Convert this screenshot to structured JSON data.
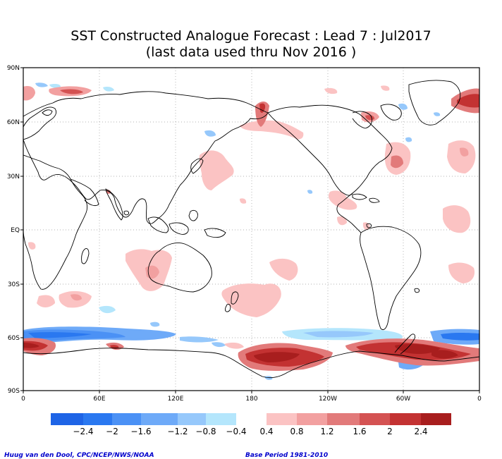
{
  "title": {
    "line1": "SST Constructed Analogue Forecast : Lead 7 : Jul2017",
    "line2": "(last data used thru Nov 2016 )"
  },
  "axes": {
    "lat_labels": [
      "90N",
      "60N",
      "30N",
      "EQ",
      "30S",
      "60S",
      "90S"
    ],
    "lon_labels": [
      "0",
      "60E",
      "120E",
      "180",
      "120W",
      "60W",
      "0"
    ]
  },
  "colorbar": {
    "negative_colors": [
      "#1e64e6",
      "#2a78f0",
      "#4b91f5",
      "#6eaaf8",
      "#96c8fb",
      "#b4e6fc"
    ],
    "positive_colors": [
      "#fbc3c3",
      "#f2a0a0",
      "#e27a7a",
      "#d45252",
      "#c33232",
      "#a81e1e"
    ],
    "tick_labels": [
      "−2.4",
      "−2",
      "−1.6",
      "−1.2",
      "−0.8",
      "−0.4",
      "0.4",
      "0.8",
      "1.2",
      "1.6",
      "2",
      "2.4"
    ]
  },
  "credits": {
    "left": "Huug van den Dool, CPC/NCEP/NWS/NOAA",
    "right": "Base Period 1981-2010"
  }
}
